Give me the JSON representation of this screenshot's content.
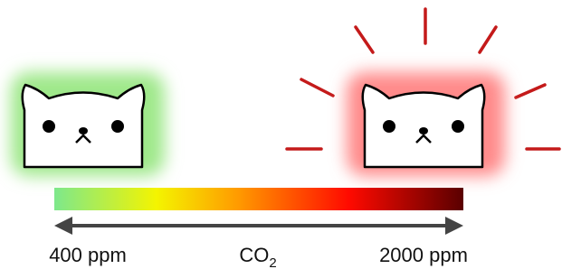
{
  "scale": {
    "min_label": "400 ppm",
    "center_label": {
      "text": "CO",
      "subscript": "2"
    },
    "max_label": "2000 ppm"
  }
}
